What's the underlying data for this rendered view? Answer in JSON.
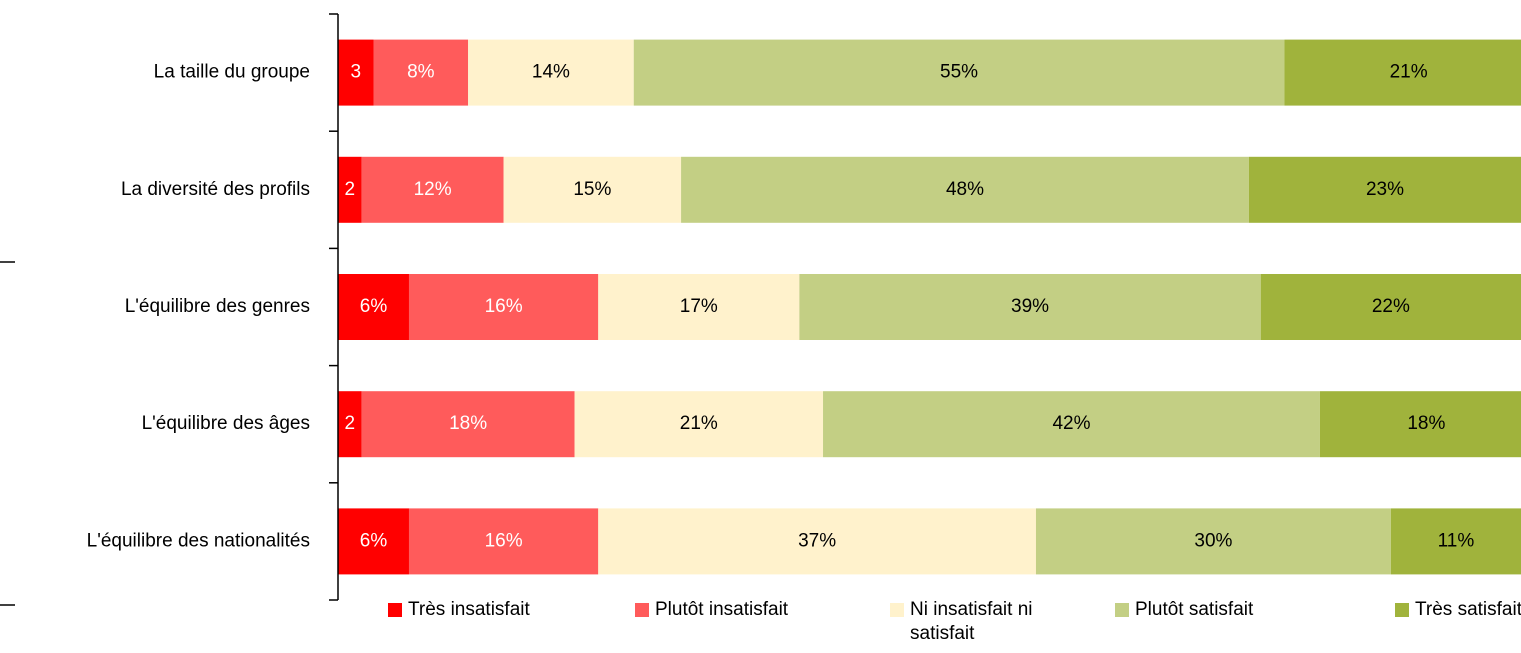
{
  "chart_data": {
    "type": "stacked-bar-horizontal",
    "categories": [
      "La taille du groupe",
      "La diversité des profils",
      "L'équilibre des genres",
      "L'équilibre des âges",
      "L'équilibre des nationalités"
    ],
    "xlim": [
      0,
      100
    ],
    "series": [
      {
        "name": "Très insatisfait",
        "color": "#ff0000",
        "values": [
          3,
          2,
          6,
          2,
          6
        ],
        "value_labels": [
          "3",
          "2",
          "6%",
          "2",
          "6%"
        ]
      },
      {
        "name": "Plutôt insatisfait",
        "color": "#ff5b5b",
        "values": [
          8,
          12,
          16,
          18,
          16
        ],
        "value_labels": [
          "8%",
          "12%",
          "16%",
          "18%",
          "16%"
        ]
      },
      {
        "name": "Ni insatisfait ni satisfait",
        "color": "#fff2cc",
        "values": [
          14,
          15,
          17,
          21,
          37
        ],
        "value_labels": [
          "14%",
          "15%",
          "17%",
          "21%",
          "37%"
        ]
      },
      {
        "name": "Plutôt satisfait",
        "color": "#c3cf84",
        "values": [
          55,
          48,
          39,
          42,
          30
        ],
        "value_labels": [
          "55%",
          "48%",
          "39%",
          "42%",
          "30%"
        ]
      },
      {
        "name": "Très satisfait",
        "color": "#a0b33c",
        "values": [
          21,
          23,
          22,
          18,
          11
        ],
        "value_labels": [
          "21%",
          "23%",
          "22%",
          "18%",
          "11%"
        ]
      }
    ],
    "legend": "bottom"
  }
}
